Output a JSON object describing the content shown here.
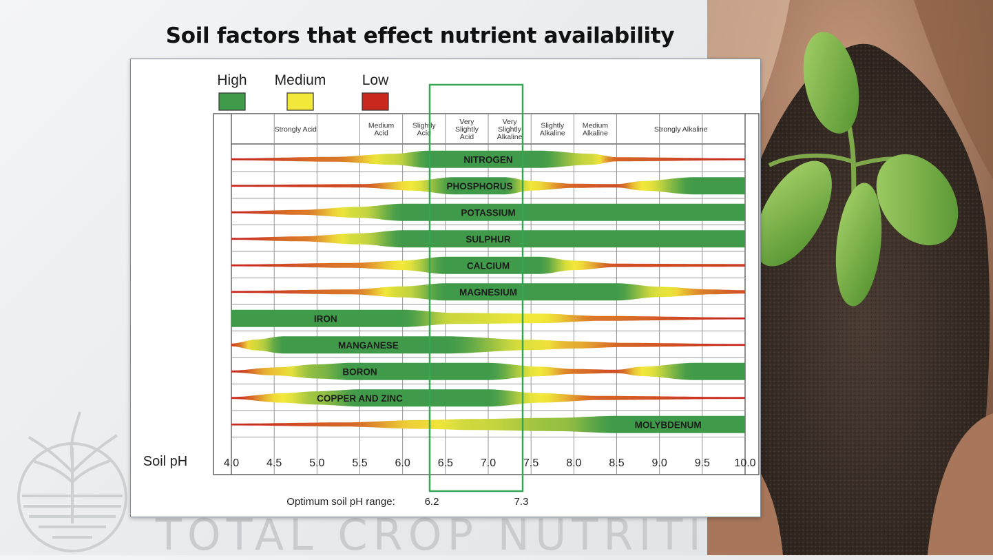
{
  "slide": {
    "title": "Soil factors that effect nutrient availability",
    "watermark_text": "TOTAL CROP NUTRITION"
  },
  "colors": {
    "high": "#3f9a4a",
    "medium": "#f2e83a",
    "low": "#c8281e",
    "band": "#34a853"
  },
  "chart_data": {
    "type": "bar",
    "legend": [
      {
        "label": "High",
        "color": "#3f9a4a"
      },
      {
        "label": "Medium",
        "color": "#f2e83a"
      },
      {
        "label": "Low",
        "color": "#c8281e"
      }
    ],
    "legend_position": "top-left",
    "xlabel": "Soil pH",
    "xlim": [
      4.0,
      10.0
    ],
    "ticks": [
      "4.0",
      "4.5",
      "5.0",
      "5.5",
      "6.0",
      "6.5",
      "7.0",
      "7.5",
      "8.0",
      "8.5",
      "9.0",
      "9.5",
      "10.0"
    ],
    "categories_header": [
      {
        "label": "Strongly Acid",
        "from": 4.0,
        "to": 5.5
      },
      {
        "label": "Medium Acid",
        "from": 5.5,
        "to": 6.0
      },
      {
        "label": "Slightly Acid",
        "from": 6.0,
        "to": 6.5
      },
      {
        "label": "Very Slightly Acid",
        "from": 6.5,
        "to": 7.0
      },
      {
        "label": "Very Slightly Alkaline",
        "from": 7.0,
        "to": 7.5
      },
      {
        "label": "Slightly Alkaline",
        "from": 7.5,
        "to": 8.0
      },
      {
        "label": "Medium Alkaline",
        "from": 8.0,
        "to": 8.5
      },
      {
        "label": "Strongly Alkaline",
        "from": 8.5,
        "to": 10.0
      }
    ],
    "optimum_range": {
      "label": "Optimum soil pH range:",
      "low": 6.2,
      "high": 7.3,
      "low_label": "6.2",
      "high_label": "7.3"
    },
    "series": [
      {
        "name": "NITROGEN",
        "label_ph": 7.0,
        "availability": [
          [
            4.0,
            0
          ],
          [
            5.2,
            0.2
          ],
          [
            5.9,
            0.6
          ],
          [
            6.3,
            1
          ],
          [
            7.6,
            1
          ],
          [
            8.2,
            0.6
          ],
          [
            8.5,
            0.15
          ],
          [
            10.0,
            0
          ]
        ]
      },
      {
        "name": "PHOSPHORUS",
        "label_ph": 6.9,
        "availability": [
          [
            4.0,
            0
          ],
          [
            5.5,
            0.1
          ],
          [
            6.1,
            0.5
          ],
          [
            6.6,
            1
          ],
          [
            7.2,
            1
          ],
          [
            7.5,
            0.5
          ],
          [
            8.0,
            0.15
          ],
          [
            8.5,
            0.1
          ],
          [
            8.8,
            0.5
          ],
          [
            9.4,
            1
          ],
          [
            10.0,
            1
          ]
        ]
      },
      {
        "name": "POTASSIUM",
        "label_ph": 7.0,
        "availability": [
          [
            4.0,
            0
          ],
          [
            4.8,
            0.2
          ],
          [
            5.5,
            0.6
          ],
          [
            6.0,
            1
          ],
          [
            10.0,
            1
          ]
        ]
      },
      {
        "name": "SULPHUR",
        "label_ph": 7.0,
        "availability": [
          [
            4.0,
            0
          ],
          [
            4.8,
            0.2
          ],
          [
            5.5,
            0.6
          ],
          [
            6.0,
            1
          ],
          [
            10.0,
            1
          ]
        ]
      },
      {
        "name": "CALCIUM",
        "label_ph": 7.0,
        "availability": [
          [
            4.0,
            0
          ],
          [
            5.4,
            0.2
          ],
          [
            6.0,
            0.5
          ],
          [
            6.5,
            1
          ],
          [
            7.6,
            1
          ],
          [
            8.0,
            0.5
          ],
          [
            8.5,
            0.1
          ],
          [
            10.0,
            0.05
          ]
        ]
      },
      {
        "name": "MAGNESIUM",
        "label_ph": 7.0,
        "availability": [
          [
            4.0,
            0
          ],
          [
            5.4,
            0.2
          ],
          [
            6.0,
            0.6
          ],
          [
            6.5,
            1
          ],
          [
            8.5,
            1
          ],
          [
            9.0,
            0.55
          ],
          [
            9.6,
            0.2
          ],
          [
            10.0,
            0.1
          ]
        ]
      },
      {
        "name": "IRON",
        "label_ph": 5.1,
        "availability": [
          [
            4.0,
            1
          ],
          [
            6.0,
            1
          ],
          [
            6.6,
            0.6
          ],
          [
            7.6,
            0.5
          ],
          [
            8.3,
            0.2
          ],
          [
            10.0,
            0
          ]
        ]
      },
      {
        "name": "MANGANESE",
        "label_ph": 5.6,
        "availability": [
          [
            4.0,
            0.05
          ],
          [
            4.3,
            0.6
          ],
          [
            4.6,
            1
          ],
          [
            6.5,
            1
          ],
          [
            7.5,
            0.55
          ],
          [
            8.0,
            0.35
          ],
          [
            8.6,
            0.15
          ],
          [
            10.0,
            0
          ]
        ]
      },
      {
        "name": "BORON",
        "label_ph": 5.5,
        "availability": [
          [
            4.0,
            0
          ],
          [
            4.5,
            0.4
          ],
          [
            5.0,
            0.8
          ],
          [
            5.4,
            1
          ],
          [
            7.0,
            1
          ],
          [
            7.6,
            0.5
          ],
          [
            8.0,
            0.2
          ],
          [
            8.5,
            0.1
          ],
          [
            8.8,
            0.5
          ],
          [
            9.4,
            1
          ],
          [
            10.0,
            1
          ]
        ]
      },
      {
        "name": "COPPER AND ZINC",
        "label_ph": 5.5,
        "availability": [
          [
            4.0,
            0
          ],
          [
            4.6,
            0.5
          ],
          [
            5.0,
            0.75
          ],
          [
            5.5,
            1
          ],
          [
            7.0,
            1
          ],
          [
            7.6,
            0.5
          ],
          [
            8.3,
            0.15
          ],
          [
            10.0,
            0
          ]
        ]
      },
      {
        "name": "MOLYBDENUM",
        "label_ph": 9.1,
        "availability": [
          [
            4.0,
            0
          ],
          [
            5.3,
            0.15
          ],
          [
            6.2,
            0.45
          ],
          [
            6.8,
            0.6
          ],
          [
            7.8,
            0.75
          ],
          [
            8.5,
            1
          ],
          [
            10.0,
            1
          ]
        ]
      }
    ]
  }
}
